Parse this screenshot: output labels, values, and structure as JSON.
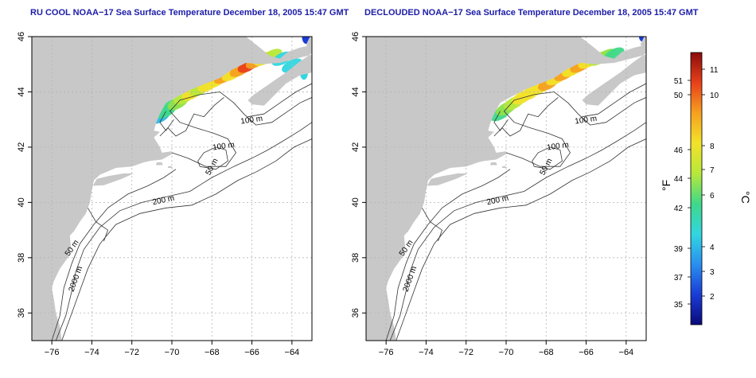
{
  "maps": [
    {
      "title": "RU COOL NOAA−17 Sea Surface Temperature December 18, 2005 15:47 GMT",
      "variant": "cool"
    },
    {
      "title": "DECLOUDED NOAA−17 Sea Surface Temperature December 18, 2005 15:47 GMT",
      "variant": "declouded"
    }
  ],
  "axes": {
    "x_ticks": [
      "−76",
      "−74",
      "−72",
      "−70",
      "−68",
      "−66",
      "−64"
    ],
    "x_values": [
      -76,
      -74,
      -72,
      -70,
      -68,
      -66,
      -64
    ],
    "y_ticks": [
      "46",
      "44",
      "42",
      "40",
      "38",
      "36"
    ],
    "y_values": [
      46,
      44,
      42,
      40,
      38,
      36
    ],
    "lon_range": [
      -77,
      -63
    ],
    "lat_range": [
      35,
      46
    ]
  },
  "contours": {
    "labels": [
      "100 m",
      "100 m",
      "50 m",
      "200 m",
      "50 m",
      "2000 m"
    ]
  },
  "colorbar": {
    "fahrenheit_label": "°F",
    "celsius_label": "°C",
    "fahrenheit_ticks": [
      "51",
      "50",
      "46",
      "44",
      "42",
      "39",
      "37",
      "35"
    ],
    "celsius_ticks": [
      "11",
      "10",
      "8",
      "7",
      "6",
      "4",
      "3",
      "2"
    ],
    "colors": [
      "#0a0a7a",
      "#1a3cd6",
      "#2a8ff0",
      "#32d6e0",
      "#3fd88a",
      "#b8e83a",
      "#f2e22a",
      "#f6a020",
      "#e8401a",
      "#8a0c0c"
    ]
  },
  "colors": {
    "land": "#c8c8c8",
    "ocean": "#ffffff",
    "grid": "#b4b4b4",
    "title": "#1c1ca8"
  }
}
